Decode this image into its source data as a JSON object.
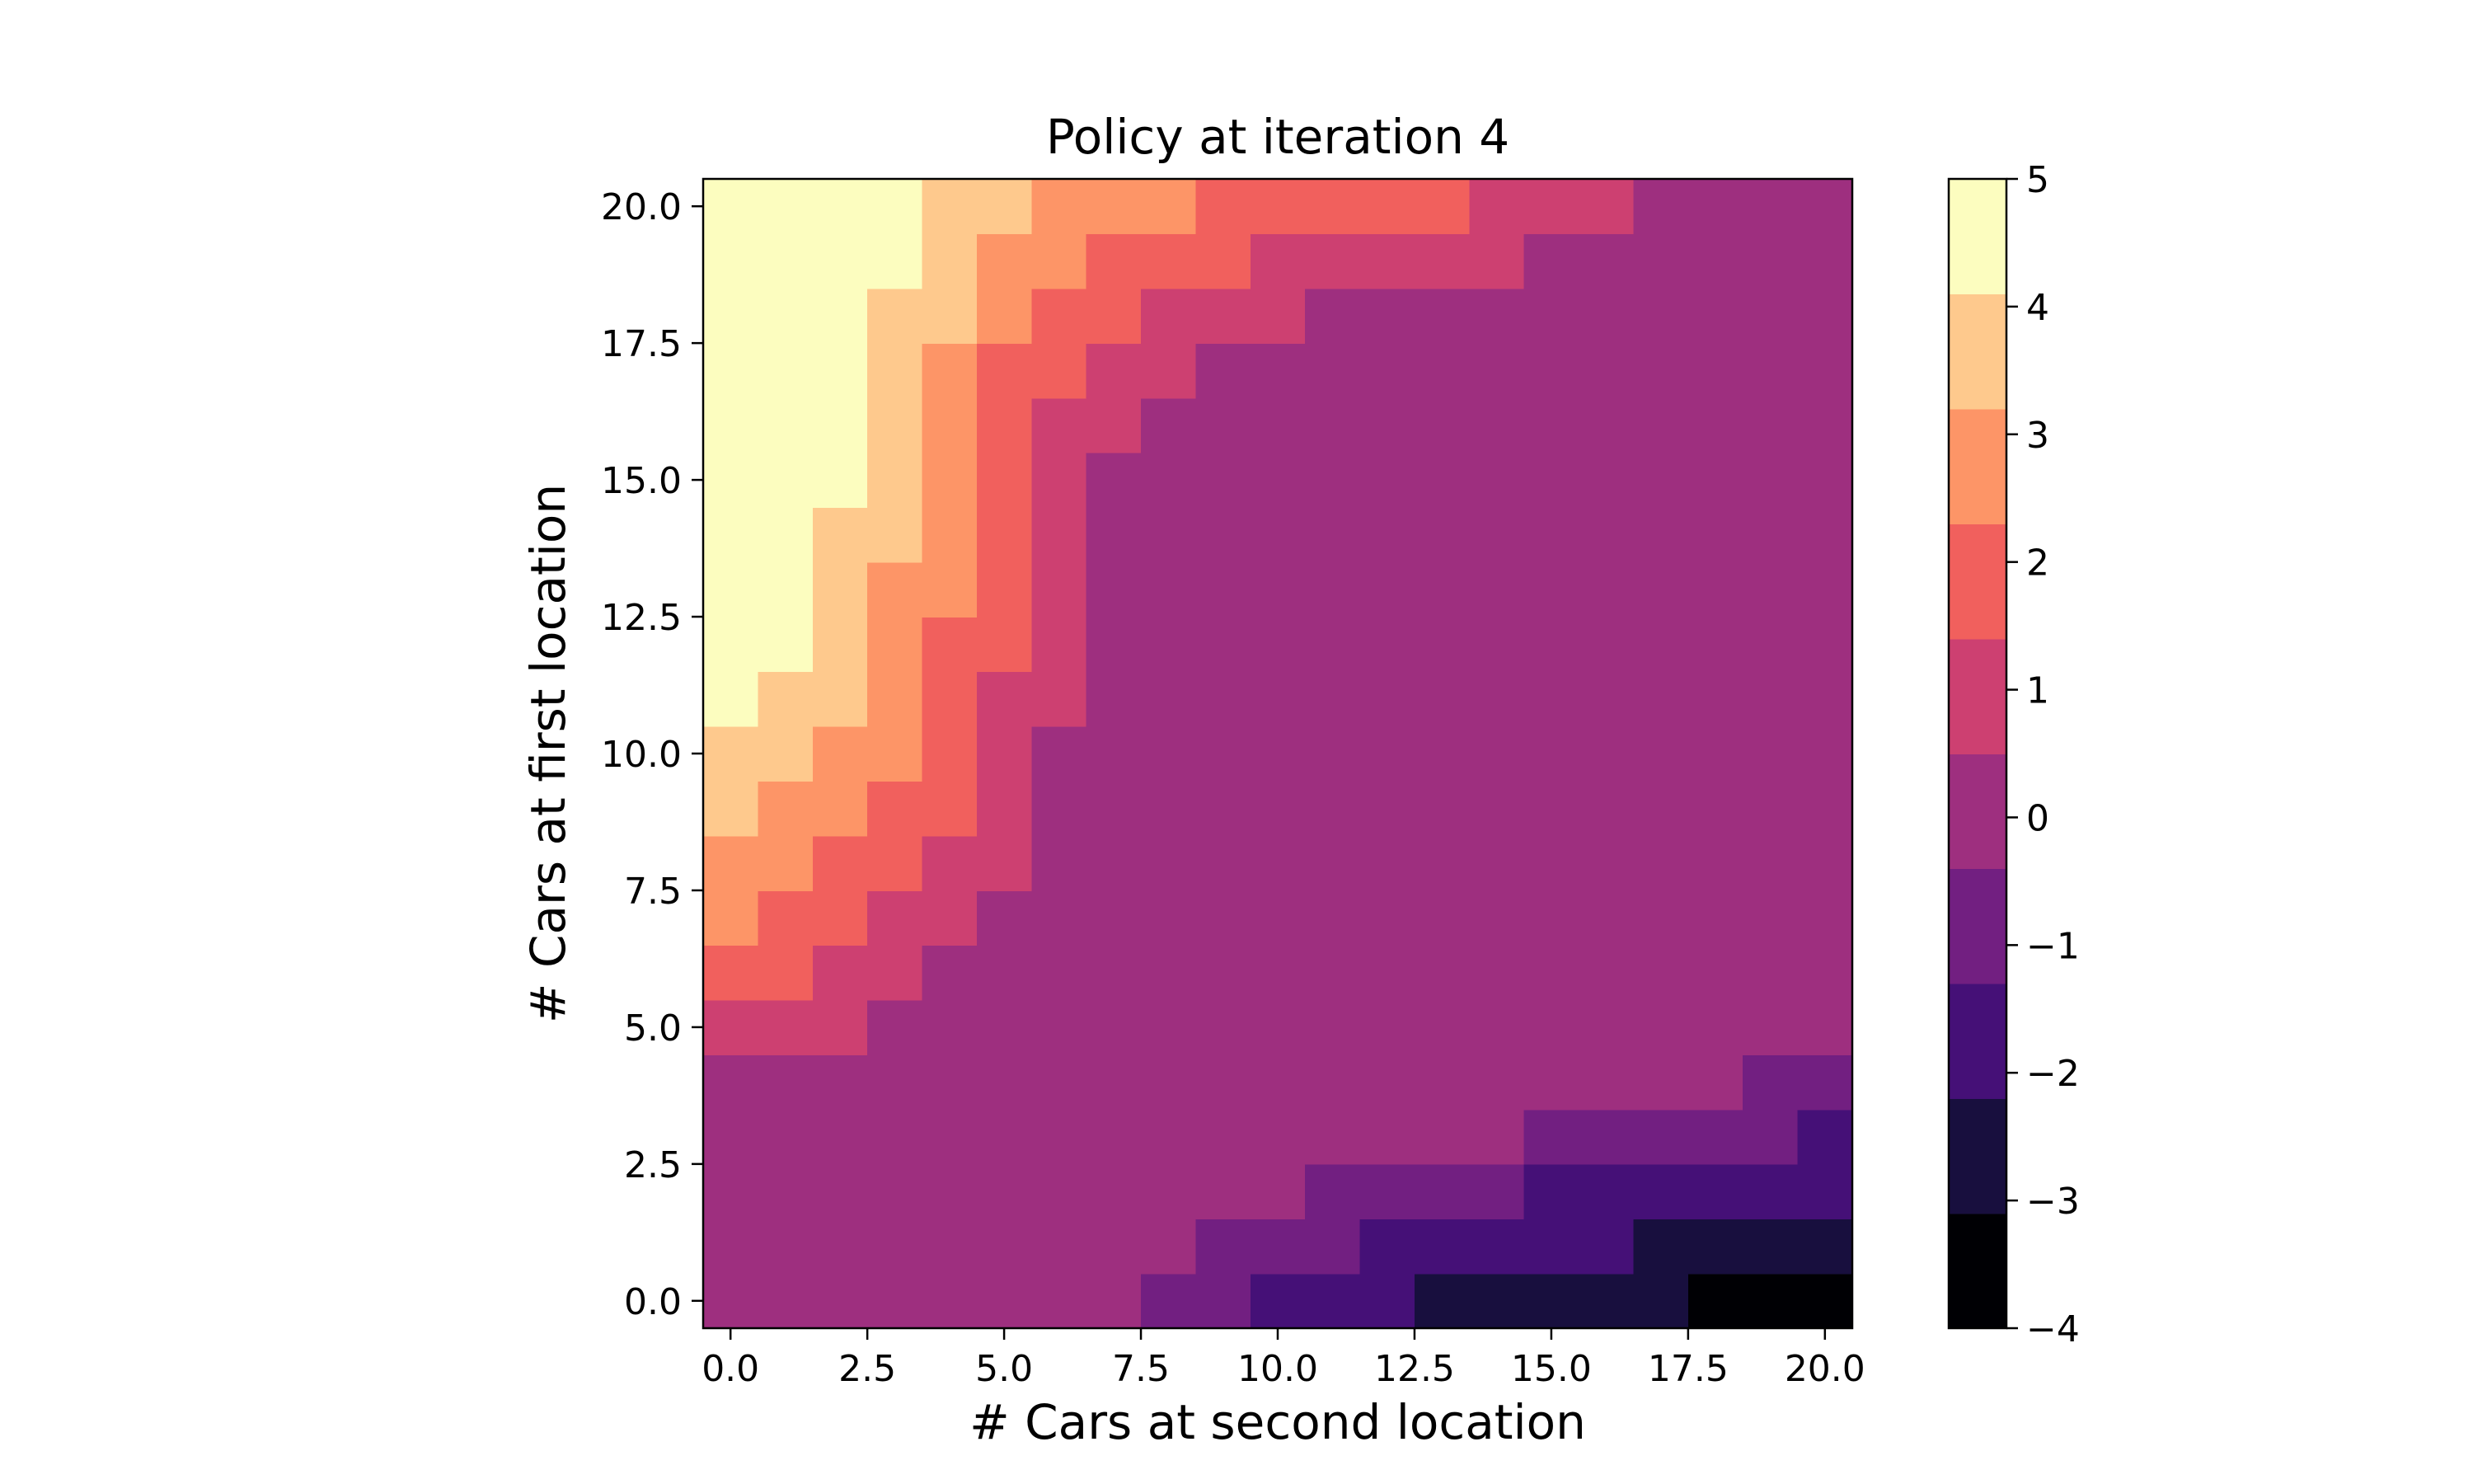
{
  "chart_data": {
    "type": "heatmap",
    "title": "Policy at iteration 4",
    "xlabel": "# Cars at second location",
    "ylabel": "# Cars at first location",
    "xlim": [
      -0.5,
      20.5
    ],
    "ylim": [
      -0.5,
      20.5
    ],
    "x_ticks": [
      0.0,
      2.5,
      5.0,
      7.5,
      10.0,
      12.5,
      15.0,
      17.5,
      20.0
    ],
    "x_tick_labels": [
      "0.0",
      "2.5",
      "5.0",
      "7.5",
      "10.0",
      "12.5",
      "15.0",
      "17.5",
      "20.0"
    ],
    "y_ticks": [
      0.0,
      2.5,
      5.0,
      7.5,
      10.0,
      12.5,
      15.0,
      17.5,
      20.0
    ],
    "y_tick_labels": [
      "0.0",
      "2.5",
      "5.0",
      "7.5",
      "10.0",
      "12.5",
      "15.0",
      "17.5",
      "20.0"
    ],
    "colorbar": {
      "vmin": -4,
      "vmax": 5,
      "ticks": [
        5,
        4,
        3,
        2,
        1,
        0,
        -1,
        -2,
        -3,
        -4
      ],
      "tick_labels": [
        "5",
        "4",
        "3",
        "2",
        "1",
        "0",
        "−1",
        "−2",
        "−3",
        "−4"
      ],
      "colors": [
        "#000004",
        "#180f3e",
        "#451077",
        "#721f81",
        "#9e2f7f",
        "#cd4071",
        "#f1605d",
        "#fd9567",
        "#fec98d",
        "#fcfdbf"
      ]
    },
    "row_order": "first row is # Cars at first location = 0, last row = 20; columns are # Cars at second location = 0..20",
    "values": [
      [
        0,
        0,
        0,
        0,
        0,
        0,
        0,
        0,
        -1,
        -1,
        -2,
        -2,
        -2,
        -3,
        -3,
        -3,
        -3,
        -3,
        -4,
        -4,
        -4
      ],
      [
        0,
        0,
        0,
        0,
        0,
        0,
        0,
        0,
        0,
        -1,
        -1,
        -1,
        -2,
        -2,
        -2,
        -2,
        -2,
        -3,
        -3,
        -3,
        -3
      ],
      [
        0,
        0,
        0,
        0,
        0,
        0,
        0,
        0,
        0,
        0,
        0,
        -1,
        -1,
        -1,
        -1,
        -2,
        -2,
        -2,
        -2,
        -2,
        -2
      ],
      [
        0,
        0,
        0,
        0,
        0,
        0,
        0,
        0,
        0,
        0,
        0,
        0,
        0,
        0,
        0,
        -1,
        -1,
        -1,
        -1,
        -1,
        -2
      ],
      [
        0,
        0,
        0,
        0,
        0,
        0,
        0,
        0,
        0,
        0,
        0,
        0,
        0,
        0,
        0,
        0,
        0,
        0,
        0,
        -1,
        -1
      ],
      [
        1,
        1,
        1,
        0,
        0,
        0,
        0,
        0,
        0,
        0,
        0,
        0,
        0,
        0,
        0,
        0,
        0,
        0,
        0,
        0,
        0
      ],
      [
        2,
        2,
        1,
        1,
        0,
        0,
        0,
        0,
        0,
        0,
        0,
        0,
        0,
        0,
        0,
        0,
        0,
        0,
        0,
        0,
        0
      ],
      [
        3,
        2,
        2,
        1,
        1,
        0,
        0,
        0,
        0,
        0,
        0,
        0,
        0,
        0,
        0,
        0,
        0,
        0,
        0,
        0,
        0
      ],
      [
        3,
        3,
        2,
        2,
        1,
        1,
        0,
        0,
        0,
        0,
        0,
        0,
        0,
        0,
        0,
        0,
        0,
        0,
        0,
        0,
        0
      ],
      [
        4,
        3,
        3,
        2,
        2,
        1,
        0,
        0,
        0,
        0,
        0,
        0,
        0,
        0,
        0,
        0,
        0,
        0,
        0,
        0,
        0
      ],
      [
        4,
        4,
        3,
        3,
        2,
        1,
        0,
        0,
        0,
        0,
        0,
        0,
        0,
        0,
        0,
        0,
        0,
        0,
        0,
        0,
        0
      ],
      [
        5,
        4,
        4,
        3,
        2,
        1,
        1,
        0,
        0,
        0,
        0,
        0,
        0,
        0,
        0,
        0,
        0,
        0,
        0,
        0,
        0
      ],
      [
        5,
        5,
        4,
        3,
        2,
        2,
        1,
        0,
        0,
        0,
        0,
        0,
        0,
        0,
        0,
        0,
        0,
        0,
        0,
        0,
        0
      ],
      [
        5,
        5,
        4,
        3,
        3,
        2,
        1,
        0,
        0,
        0,
        0,
        0,
        0,
        0,
        0,
        0,
        0,
        0,
        0,
        0,
        0
      ],
      [
        5,
        5,
        4,
        4,
        3,
        2,
        1,
        0,
        0,
        0,
        0,
        0,
        0,
        0,
        0,
        0,
        0,
        0,
        0,
        0,
        0
      ],
      [
        5,
        5,
        5,
        4,
        3,
        2,
        1,
        0,
        0,
        0,
        0,
        0,
        0,
        0,
        0,
        0,
        0,
        0,
        0,
        0,
        0
      ],
      [
        5,
        5,
        5,
        4,
        3,
        2,
        1,
        1,
        0,
        0,
        0,
        0,
        0,
        0,
        0,
        0,
        0,
        0,
        0,
        0,
        0
      ],
      [
        5,
        5,
        5,
        4,
        3,
        2,
        2,
        1,
        1,
        0,
        0,
        0,
        0,
        0,
        0,
        0,
        0,
        0,
        0,
        0,
        0
      ],
      [
        5,
        5,
        5,
        4,
        4,
        3,
        2,
        2,
        1,
        1,
        1,
        0,
        0,
        0,
        0,
        0,
        0,
        0,
        0,
        0,
        0
      ],
      [
        5,
        5,
        5,
        5,
        4,
        3,
        3,
        2,
        2,
        2,
        1,
        1,
        1,
        1,
        1,
        0,
        0,
        0,
        0,
        0,
        0
      ],
      [
        5,
        5,
        5,
        5,
        4,
        4,
        3,
        3,
        3,
        2,
        2,
        2,
        2,
        2,
        1,
        1,
        1,
        0,
        0,
        0,
        0
      ]
    ]
  }
}
